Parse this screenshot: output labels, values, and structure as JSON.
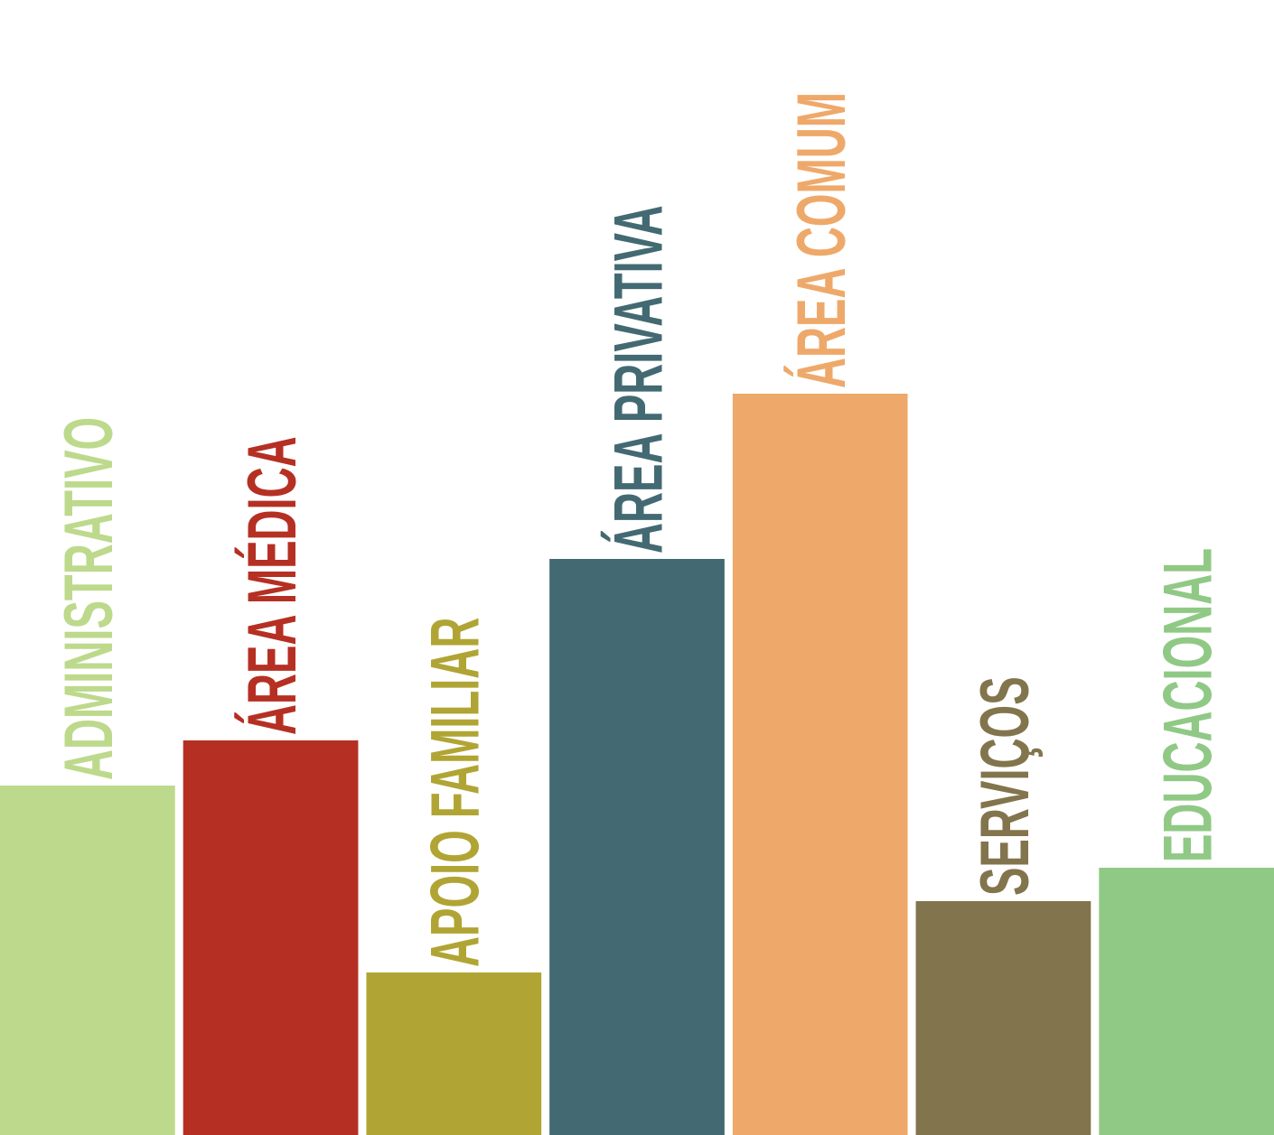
{
  "chart_data": {
    "type": "bar",
    "title": "",
    "xlabel": "",
    "ylabel": "",
    "ylim": [
      0,
      1257
    ],
    "grid": false,
    "legend": "none",
    "categories": [
      "ADMINISTRATIVO",
      "ÁREA MÉDICA",
      "APOIO FAMILIAR",
      "ÁREA PRIVATIVA",
      "ÁREA COMUM",
      "SERVIÇOS",
      "EDUCACIONAL"
    ],
    "values": [
      387,
      437,
      180,
      638,
      821,
      259,
      296
    ],
    "colors": [
      "#bdd98c",
      "#b53023",
      "#b0a534",
      "#436a72",
      "#eea96a",
      "#82744c",
      "#90c985"
    ]
  }
}
